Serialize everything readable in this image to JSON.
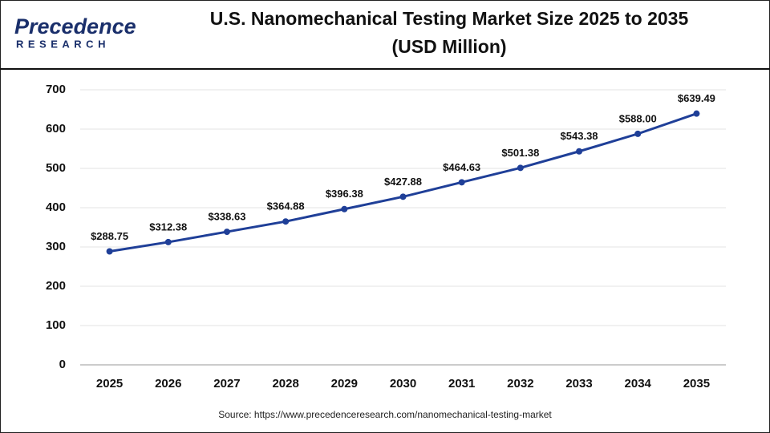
{
  "logo": {
    "name": "Precedence",
    "tagline": "RESEARCH"
  },
  "chart_data": {
    "type": "line",
    "title": "U.S. Nanomechanical Testing Market Size 2025 to 2035",
    "subtitle": "(USD Million)",
    "categories": [
      "2025",
      "2026",
      "2027",
      "2028",
      "2029",
      "2030",
      "2031",
      "2032",
      "2033",
      "2034",
      "2035"
    ],
    "values": [
      288.75,
      312.38,
      338.63,
      364.88,
      396.38,
      427.88,
      464.63,
      501.38,
      543.38,
      588.0,
      639.49
    ],
    "value_labels": [
      "$288.75",
      "$312.38",
      "$338.63",
      "$364.88",
      "$396.38",
      "$427.88",
      "$464.63",
      "$501.38",
      "$543.38",
      "$588.00",
      "$639.49"
    ],
    "color": "#1f3f98",
    "ylim": [
      0,
      700
    ],
    "yticks": [
      0,
      100,
      200,
      300,
      400,
      500,
      600,
      700
    ],
    "grid": true,
    "source": "Source: https://www.precedenceresearch.com/nanomechanical-testing-market"
  }
}
